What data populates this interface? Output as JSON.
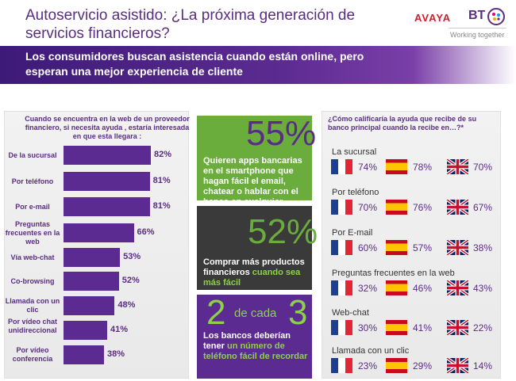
{
  "header": {
    "title": "Autoservicio asistido: ¿La próxima generación de servicios financieros?",
    "subtitle": "Los consumidores buscan asistencia cuando están online, pero esperan una mejor experiencia de cliente"
  },
  "logos": {
    "avaya": "AVAYA",
    "bt": "BT",
    "tagline": "Working together"
  },
  "colors": {
    "purple": "#5c2b91",
    "green": "#6aad3c",
    "dark": "#3a3a3a"
  },
  "chart_data": [
    {
      "type": "bar",
      "title": "Cuando se encuentra en la web de un proveedor financiero, si necesita ayuda , estaría interesada en que esta llegara :",
      "categories": [
        "De la sucursal",
        "Por teléfono",
        "Por e-mail",
        "Preguntas frecuentes en la web",
        "Vía web-chat",
        "Co-browsing",
        "Llamada con un clic",
        "Por vídeo chat unidireccional",
        "Por vídeo conferencia"
      ],
      "values": [
        82,
        81,
        81,
        66,
        53,
        52,
        48,
        41,
        38
      ],
      "value_labels": [
        "82%",
        "81%",
        "81%",
        "66%",
        "53%",
        "52%",
        "48%",
        "41%",
        "38%"
      ],
      "orientation": "horizontal"
    },
    {
      "type": "table",
      "title": "¿Cómo calificaría la ayuda que recibe de su banco principal cuando la recibe en…?*",
      "columns": [
        "France",
        "Spain",
        "UK"
      ],
      "rows": [
        {
          "label": "La sucursal",
          "values": [
            "74%",
            "78%",
            "70%"
          ]
        },
        {
          "label": "Por teléfono",
          "values": [
            "70%",
            "76%",
            "67%"
          ]
        },
        {
          "label": "Por E-mail",
          "values": [
            "60%",
            "57%",
            "38%"
          ]
        },
        {
          "label": "Preguntas frecuentes en la web",
          "values": [
            "32%",
            "46%",
            "43%"
          ]
        },
        {
          "label": "Web-chat",
          "values": [
            "30%",
            "41%",
            "22%"
          ]
        },
        {
          "label": "Llamada con un clic",
          "values": [
            "23%",
            "29%",
            "14%"
          ]
        }
      ]
    }
  ],
  "tiles": {
    "t1": {
      "stat": "55%",
      "text": "Quieren apps bancarias en el smartphone que hagan fácil el email, chatear o hablar con el banco en cualquier momento"
    },
    "t2": {
      "stat": "52%",
      "text_a": "Comprar más productos financieros ",
      "text_b": "cuando sea más fácil"
    },
    "t3": {
      "stat_a": "2",
      "stat_b": "de cada",
      "stat_c": "3",
      "text_a": "Los bancos deberían tener ",
      "text_b": "un número de teléfono fácil de recordar"
    }
  }
}
